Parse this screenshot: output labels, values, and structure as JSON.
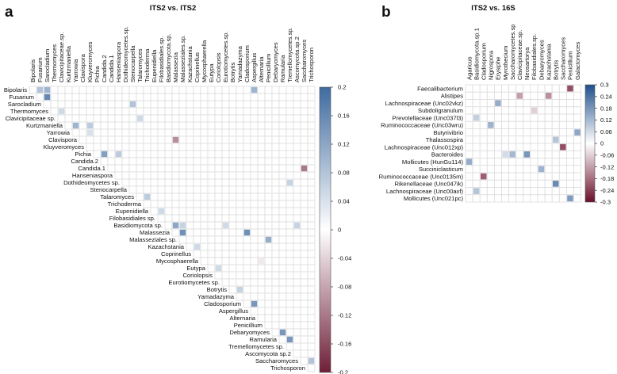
{
  "chart_data": [
    {
      "type": "heatmap",
      "panel_label": "a",
      "title": "ITS2 vs. ITS2",
      "layout": "upper-triangular",
      "columns": [
        "Bipolaris",
        "Fusarium",
        "Sarocladium",
        "Thermomyces",
        "Clavicipitaceae.sp.",
        "Kurtzmaniella",
        "Yarrowia",
        "Clavispora",
        "Kluyveromyces",
        "Pichia",
        "Candida.2",
        "Candida.1",
        "Hanseniaspora",
        "Dothideomycetes.sp.",
        "Stenocarpella",
        "Talaromyces",
        "Trichoderma",
        "Eupenidiella",
        "Filobasidiales.sp.",
        "Basidiomycota.sp.",
        "Malassezia",
        "Malasseziales.sp.",
        "Kazachstania",
        "Coprinellus",
        "Mycosphaerella",
        "Eutypa",
        "Coriolopsis",
        "Eurotiomycetes.sp.",
        "Botrytis",
        "Yamadazyma",
        "Cladosporium",
        "Aspergillus",
        "Alternaria",
        "Penicillium",
        "Debaryomyces",
        "Ramularia",
        "Tremellomycetes.sp.",
        "Ascomycota.sp.2",
        "Saccharomyces",
        "Trichosporon"
      ],
      "rows": [
        "Bipolaris",
        "Fusarium",
        "Sarocladium",
        "Thermomyces",
        "Clavicipitaceae sp.",
        "Kurtzmaniella",
        "Yarrowia",
        "Clavispora",
        "Kluyveromyces",
        "Pichia",
        "Candida.2",
        "Candida.1",
        "Hanseniaspora",
        "Dothideomycetes sp.",
        "Stenocarpella",
        "Talaromyces",
        "Trichoderma",
        "Eupenidiella",
        "Filobasidiales sp.",
        "Basidiomycota sp.",
        "Malassezia",
        "Malasseziales sp.",
        "Kazachstania",
        "Coprinellus",
        "Mycosphaerella",
        "Eutypa",
        "Coriolopsis",
        "Eurotiomycetes sp.",
        "Botrytis",
        "Yamadazyma",
        "Cladosporium",
        "Aspergillus",
        "Alternaria",
        "Penicillium",
        "Debaryomyces",
        "Ramularia",
        "Tremellomycetes sp.",
        "Ascomycota sp.2",
        "Saccharomyces",
        "Trichosporon"
      ],
      "cells": [
        {
          "row": 0,
          "col": 1,
          "value": 0.08
        },
        {
          "row": 0,
          "col": 2,
          "value": 0.1
        },
        {
          "row": 0,
          "col": 31,
          "value": 0.1
        },
        {
          "row": 1,
          "col": 2,
          "value": 0.16
        },
        {
          "row": 2,
          "col": 14,
          "value": 0.08
        },
        {
          "row": 3,
          "col": 4,
          "value": 0.05
        },
        {
          "row": 4,
          "col": 15,
          "value": 0.05
        },
        {
          "row": 5,
          "col": 6,
          "value": 0.1
        },
        {
          "row": 5,
          "col": 8,
          "value": 0.07
        },
        {
          "row": 6,
          "col": 8,
          "value": 0.04
        },
        {
          "row": 7,
          "col": 20,
          "value": -0.1
        },
        {
          "row": 9,
          "col": 10,
          "value": 0.13
        },
        {
          "row": 9,
          "col": 12,
          "value": 0.07
        },
        {
          "row": 11,
          "col": 38,
          "value": -0.12
        },
        {
          "row": 13,
          "col": 36,
          "value": 0.06
        },
        {
          "row": 15,
          "col": 16,
          "value": 0.07
        },
        {
          "row": 17,
          "col": 18,
          "value": 0.05
        },
        {
          "row": 19,
          "col": 20,
          "value": 0.12
        },
        {
          "row": 19,
          "col": 21,
          "value": 0.06
        },
        {
          "row": 19,
          "col": 27,
          "value": 0.05
        },
        {
          "row": 19,
          "col": 37,
          "value": 0.06
        },
        {
          "row": 20,
          "col": 21,
          "value": 0.15
        },
        {
          "row": 20,
          "col": 30,
          "value": 0.15
        },
        {
          "row": 21,
          "col": 33,
          "value": 0.11
        },
        {
          "row": 22,
          "col": 23,
          "value": 0.05
        },
        {
          "row": 24,
          "col": 32,
          "value": -0.02
        },
        {
          "row": 25,
          "col": 26,
          "value": 0.05
        },
        {
          "row": 28,
          "col": 29,
          "value": 0.06
        },
        {
          "row": 30,
          "col": 31,
          "value": 0.14
        },
        {
          "row": 34,
          "col": 35,
          "value": 0.14
        },
        {
          "row": 35,
          "col": 36,
          "value": 0.14
        },
        {
          "row": 38,
          "col": 39,
          "value": 0.08
        }
      ],
      "colorbar": {
        "range": [
          -0.2,
          0.2
        ],
        "ticks": [
          "0.2",
          "0.16",
          "0.12",
          "0.08",
          "0.04",
          "0",
          "-0.04",
          "-0.08",
          "-0.12",
          "-0.16",
          "-0.2"
        ]
      },
      "colors": {
        "positive": "#3f6b9f",
        "negative": "#6e1f38",
        "zero": "#ffffff",
        "grid": "#dcdcdc"
      }
    },
    {
      "type": "heatmap",
      "panel_label": "b",
      "title": "ITS2 vs. 16S",
      "layout": "full",
      "columns": [
        "Agaricus",
        "Basidiomycota.sp.1",
        "Cladosporium",
        "Nigrospora",
        "Erysiphe",
        "Myrothecium",
        "Saccharomycetes.sp",
        "Clavicipitaceae.sp.",
        "Neosartorya",
        "Filobasidiales.sp.",
        "Debaryomyces",
        "Kazachstania",
        "Botrytis",
        "Saccharomyces",
        "Penicillium",
        "Galactomyces"
      ],
      "rows": [
        "Faecalibacterium",
        "Alistipes",
        "Lachnospiraceae (Unc02vkz)",
        "Subdoligranulum",
        "Prevotellaceae (Unc037l3)",
        "Ruminococcaceae (Unc03wru)",
        "Butyrivibrio",
        "Thalassospira",
        "Lachnospiraceae (Unc012xp)",
        "Bacteroides",
        "Mollicutes (HunGu114)",
        "Succiniclasticum",
        "Ruminococcaceae (Unc0135m)",
        "Rikenellaceae (Unc047ik)",
        "Lachnospiraceae (Unc00axf)",
        "Mollicutes (Unc021pc)"
      ],
      "cells": [
        {
          "row": 0,
          "col": 14,
          "value": -0.22
        },
        {
          "row": 1,
          "col": 7,
          "value": -0.12
        },
        {
          "row": 1,
          "col": 11,
          "value": -0.14
        },
        {
          "row": 2,
          "col": 4,
          "value": 0.14
        },
        {
          "row": 3,
          "col": 9,
          "value": -0.06
        },
        {
          "row": 4,
          "col": 1,
          "value": 0.08
        },
        {
          "row": 5,
          "col": 3,
          "value": 0.13
        },
        {
          "row": 6,
          "col": 15,
          "value": 0.15
        },
        {
          "row": 7,
          "col": 12,
          "value": 0.1
        },
        {
          "row": 8,
          "col": 13,
          "value": -0.22
        },
        {
          "row": 9,
          "col": 5,
          "value": 0.06
        },
        {
          "row": 9,
          "col": 6,
          "value": 0.12
        },
        {
          "row": 9,
          "col": 8,
          "value": 0.18
        },
        {
          "row": 10,
          "col": 0,
          "value": 0.14
        },
        {
          "row": 11,
          "col": 10,
          "value": 0.13
        },
        {
          "row": 12,
          "col": 2,
          "value": -0.2
        },
        {
          "row": 13,
          "col": 12,
          "value": 0.2
        },
        {
          "row": 14,
          "col": 1,
          "value": 0.1
        },
        {
          "row": 15,
          "col": 14,
          "value": 0.17
        }
      ],
      "colorbar": {
        "range": [
          -0.3,
          0.3
        ],
        "ticks": [
          "0.3",
          "0.24",
          "0.18",
          "0.12",
          "0.06",
          "0",
          "-0.06",
          "-0.12",
          "-0.18",
          "-0.24",
          "-0.3"
        ]
      },
      "colors": {
        "positive": "#1f4f8c",
        "negative": "#6a0f2a",
        "zero": "#ffffff",
        "grid": "#dcdcdc"
      }
    }
  ]
}
